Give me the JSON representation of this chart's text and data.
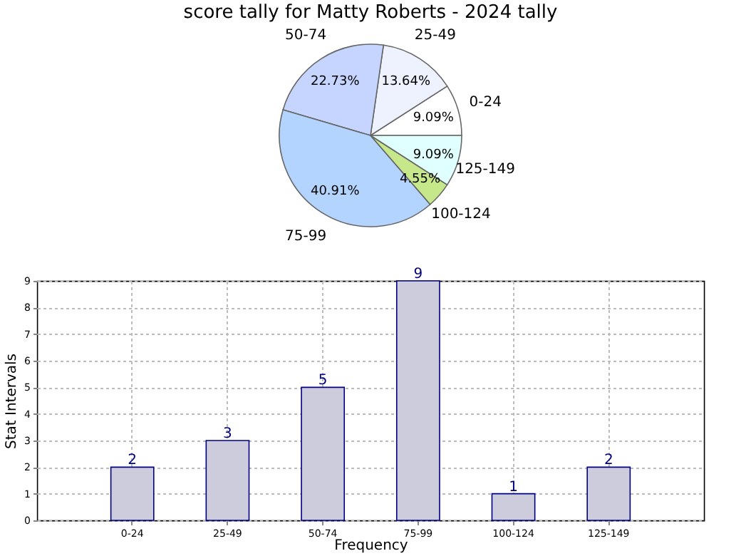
{
  "chart_data": [
    {
      "type": "pie",
      "title": "score tally for Matty Roberts - 2024 tally",
      "categories": [
        "0-24",
        "25-49",
        "50-74",
        "75-99",
        "100-124",
        "125-149"
      ],
      "values": [
        9.09,
        13.64,
        22.73,
        40.91,
        4.55,
        9.09
      ],
      "colors": [
        "#ffffff",
        "#eef2ff",
        "#c5d5ff",
        "#b3d4ff",
        "#c6e88a",
        "#e0ffff"
      ],
      "value_labels": [
        "9.09%",
        "13.64%",
        "22.73%",
        "40.91%",
        "4.55%",
        "9.09%"
      ]
    },
    {
      "type": "bar",
      "categories": [
        "0-24",
        "25-49",
        "50-74",
        "75-99",
        "100-124",
        "125-149"
      ],
      "values": [
        2,
        3,
        5,
        9,
        1,
        2
      ],
      "color": "#ccccdd",
      "xlabel": "Frequency",
      "ylabel": "Stat Intervals",
      "ylim": [
        0,
        9
      ],
      "yticks": [
        0,
        1,
        2,
        3,
        4,
        5,
        6,
        7,
        8,
        9
      ],
      "grid": true,
      "data_labels": true
    }
  ]
}
